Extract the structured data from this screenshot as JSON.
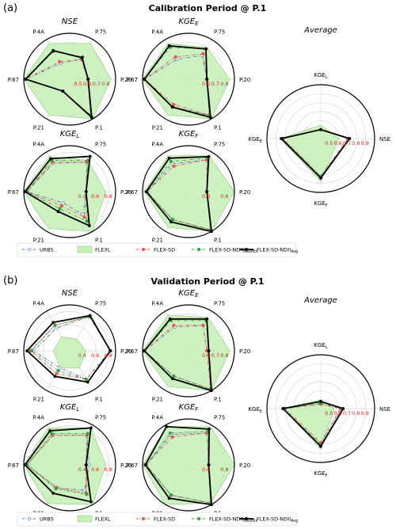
{
  "panels": [
    {
      "letter": "(a)",
      "title": "Calibration Period @ P.1"
    },
    {
      "letter": "(b)",
      "title": "Validation Period @ P.1"
    }
  ],
  "legend": [
    {
      "key": "urbs",
      "label": "URBS",
      "sub": "",
      "color": "#5a6fb8",
      "style": "dashdot-open"
    },
    {
      "key": "flexl",
      "label": "FLEXL",
      "sub": "",
      "color": "#c6efb6",
      "style": "fill"
    },
    {
      "key": "flexsd",
      "label": "FLEX-SD",
      "sub": "",
      "color": "#e05a50",
      "style": "dashdot-filled"
    },
    {
      "key": "ndmm",
      "label": "FLEX-SD-NDII",
      "sub": "MaxMin",
      "color": "#3d9a47",
      "style": "dashdot-filled"
    },
    {
      "key": "ndavg",
      "label": "FLEX-SD-NDII",
      "sub": "Avg",
      "color": "#000000",
      "style": "solid"
    }
  ],
  "colors": {
    "flexl_fill": "#c6efb6",
    "flexl_edge": "#8fcc7b",
    "tick_labels": "#e0251d",
    "ring": "#d8d8d8",
    "black": "#000000"
  },
  "chart_data": [
    {
      "type": "radar",
      "panel": "a",
      "title": "NSE",
      "title_sub": "",
      "axes": [
        "P.75",
        "P.20",
        "P.1",
        "P.21",
        "P.67",
        "P.4A"
      ],
      "rings": [
        0.5,
        0.6,
        0.7,
        0.8
      ],
      "ring_labels": [
        "0.5",
        "0.6",
        "0.7",
        "0.8"
      ],
      "range": [
        0.4,
        0.9
      ],
      "series": {
        "flexl": [
          0.85,
          0.85,
          0.9,
          0.85,
          0.9,
          0.85
        ],
        "urbs": [
          0.65,
          0.6,
          0.85,
          0.55,
          0.88,
          0.6
        ],
        "flexsd": [
          0.65,
          0.6,
          0.85,
          0.55,
          0.88,
          0.62
        ],
        "ndmm": [
          0.68,
          0.6,
          0.86,
          0.55,
          0.88,
          0.75
        ],
        "ndavg": [
          0.67,
          0.6,
          0.88,
          0.55,
          0.88,
          0.76
        ]
      }
    },
    {
      "type": "radar",
      "panel": "a",
      "title": "KGE",
      "title_sub": "E",
      "axes": [
        "P.75",
        "P.20",
        "P.1",
        "P.21",
        "P.67",
        "P.4A"
      ],
      "rings": [
        0.6,
        0.7,
        0.8
      ],
      "ring_labels": [
        "0.6",
        "0.7",
        "0.8"
      ],
      "range": [
        0.4,
        0.9
      ],
      "series": {
        "flexl": [
          0.8,
          0.85,
          0.9,
          0.85,
          0.9,
          0.85
        ],
        "urbs": [
          0.7,
          0.6,
          0.85,
          0.75,
          0.88,
          0.65
        ],
        "flexsd": [
          0.72,
          0.6,
          0.85,
          0.72,
          0.88,
          0.68
        ],
        "ndmm": [
          0.78,
          0.6,
          0.86,
          0.75,
          0.88,
          0.8
        ],
        "ndavg": [
          0.78,
          0.6,
          0.88,
          0.75,
          0.88,
          0.82
        ]
      }
    },
    {
      "type": "radar",
      "panel": "a",
      "title": "KGE",
      "title_sub": "L",
      "axes": [
        "P.75",
        "P.20",
        "P.1",
        "P.21",
        "P.67",
        "P.4A"
      ],
      "rings": [
        0.4,
        0.6,
        0.8
      ],
      "ring_labels": [
        "0.4",
        "0.6",
        "0.8"
      ],
      "range": [
        0.2,
        0.9
      ],
      "series": {
        "flexl": [
          0.75,
          0.75,
          0.9,
          0.85,
          0.9,
          0.82
        ],
        "urbs": [
          0.72,
          0.45,
          0.6,
          0.4,
          0.85,
          0.7
        ],
        "flexsd": [
          0.72,
          0.45,
          0.65,
          0.45,
          0.85,
          0.72
        ],
        "ndmm": [
          0.75,
          0.45,
          0.72,
          0.5,
          0.85,
          0.75
        ],
        "ndavg": [
          0.82,
          0.45,
          0.8,
          0.55,
          0.88,
          0.78
        ]
      }
    },
    {
      "type": "radar",
      "panel": "a",
      "title": "KGE",
      "title_sub": "F",
      "axes": [
        "P.75",
        "P.20",
        "P.1",
        "P.21",
        "P.67",
        "P.4A"
      ],
      "rings": [
        0.6,
        0.8
      ],
      "ring_labels": [
        "0.6",
        "0.8"
      ],
      "range": [
        0.4,
        0.9
      ],
      "series": {
        "flexl": [
          0.85,
          0.9,
          0.9,
          0.85,
          0.88,
          0.85
        ],
        "urbs": [
          0.8,
          0.6,
          0.88,
          0.75,
          0.85,
          0.75
        ],
        "flexsd": [
          0.8,
          0.6,
          0.88,
          0.75,
          0.85,
          0.72
        ],
        "ndmm": [
          0.82,
          0.6,
          0.88,
          0.75,
          0.85,
          0.78
        ],
        "ndavg": [
          0.84,
          0.6,
          0.9,
          0.78,
          0.86,
          0.82
        ]
      }
    },
    {
      "type": "radar",
      "panel": "a",
      "title": "Average",
      "title_sub": "",
      "axes": [
        "KGE_L",
        "NSE",
        "KGE_F",
        "KGE_E"
      ],
      "rings": [
        0.5,
        0.6,
        0.7,
        0.8,
        0.9
      ],
      "ring_labels": [
        "0.5",
        "0.6",
        "0.7",
        "0.8",
        "0.9"
      ],
      "range": [
        0.4,
        1.0
      ],
      "series": {
        "flexl": [
          0.55,
          0.6,
          0.88,
          0.85
        ],
        "urbs": [
          0.5,
          0.7,
          0.82,
          0.82
        ],
        "flexsd": [
          0.5,
          0.7,
          0.82,
          0.82
        ],
        "ndmm": [
          0.5,
          0.72,
          0.82,
          0.83
        ],
        "ndavg": [
          0.5,
          0.72,
          0.84,
          0.84
        ]
      }
    },
    {
      "type": "radar",
      "panel": "b",
      "title": "NSE",
      "title_sub": "",
      "axes": [
        "P.75",
        "P.20",
        "P.1",
        "P.21",
        "P.67",
        "P.4A"
      ],
      "rings": [
        0.4,
        0.6,
        0.8
      ],
      "ring_labels": [
        "0.4",
        "0.6",
        "0.8"
      ],
      "range": [
        0.2,
        0.9
      ],
      "series": {
        "flexl": [
          0.4,
          0.45,
          0.5,
          0.5,
          0.45,
          0.45
        ],
        "urbs": [
          0.8,
          0.82,
          0.7,
          0.5,
          0.75,
          0.6
        ],
        "flexsd": [
          0.8,
          0.82,
          0.7,
          0.6,
          0.8,
          0.65
        ],
        "ndmm": [
          0.8,
          0.82,
          0.7,
          0.55,
          0.78,
          0.65
        ],
        "ndavg": [
          0.82,
          0.82,
          0.75,
          0.65,
          0.85,
          0.7
        ]
      }
    },
    {
      "type": "radar",
      "panel": "b",
      "title": "KGE",
      "title_sub": "E",
      "axes": [
        "P.75",
        "P.20",
        "P.1",
        "P.21",
        "P.67",
        "P.4A"
      ],
      "rings": [
        0.6,
        0.7,
        0.8
      ],
      "ring_labels": [
        "0.6",
        "0.7",
        "0.8"
      ],
      "range": [
        0.4,
        0.9
      ],
      "series": {
        "flexl": [
          0.82,
          0.85,
          0.9,
          0.85,
          0.9,
          0.85
        ],
        "urbs": [
          0.72,
          0.6,
          0.88,
          0.72,
          0.88,
          0.7
        ],
        "flexsd": [
          0.72,
          0.6,
          0.88,
          0.72,
          0.88,
          0.72
        ],
        "ndmm": [
          0.78,
          0.62,
          0.88,
          0.72,
          0.88,
          0.78
        ],
        "ndavg": [
          0.8,
          0.62,
          0.9,
          0.75,
          0.88,
          0.8
        ]
      }
    },
    {
      "type": "radar",
      "panel": "b",
      "title": "KGE",
      "title_sub": "L",
      "axes": [
        "P.75",
        "P.20",
        "P.1",
        "P.21",
        "P.67",
        "P.4A"
      ],
      "rings": [
        0.4,
        0.6,
        0.8
      ],
      "ring_labels": [
        "0.4",
        "0.6",
        "0.8"
      ],
      "range": [
        0.2,
        0.9
      ],
      "series": {
        "flexl": [
          0.85,
          0.75,
          0.9,
          0.88,
          0.9,
          0.85
        ],
        "urbs": [
          0.72,
          0.5,
          0.65,
          0.6,
          0.85,
          0.72
        ],
        "flexsd": [
          0.72,
          0.45,
          0.7,
          0.6,
          0.85,
          0.72
        ],
        "ndmm": [
          0.75,
          0.45,
          0.72,
          0.62,
          0.85,
          0.75
        ],
        "ndavg": [
          0.85,
          0.45,
          0.85,
          0.7,
          0.88,
          0.8
        ]
      }
    },
    {
      "type": "radar",
      "panel": "b",
      "title": "KGE",
      "title_sub": "F",
      "axes": [
        "P.75",
        "P.20",
        "P.1",
        "P.21",
        "P.67",
        "P.4A"
      ],
      "rings": [
        0.6,
        0.8
      ],
      "ring_labels": [
        "0.6",
        "0.8"
      ],
      "range": [
        0.4,
        0.9
      ],
      "series": {
        "flexl": [
          0.88,
          0.9,
          0.88,
          0.9,
          0.9,
          0.88
        ],
        "urbs": [
          0.8,
          0.62,
          0.88,
          0.78,
          0.86,
          0.78
        ],
        "flexsd": [
          0.8,
          0.62,
          0.88,
          0.78,
          0.86,
          0.75
        ],
        "ndmm": [
          0.82,
          0.62,
          0.88,
          0.78,
          0.86,
          0.8
        ],
        "ndavg": [
          0.85,
          0.62,
          0.9,
          0.82,
          0.87,
          0.88
        ]
      }
    },
    {
      "type": "radar",
      "panel": "b",
      "title": "Average",
      "title_sub": "",
      "axes": [
        "KGE_L",
        "NSE",
        "KGE_F",
        "KGE_E"
      ],
      "rings": [
        0.5,
        0.6,
        0.7,
        0.8,
        0.9
      ],
      "ring_labels": [
        "0.5",
        "0.6",
        "0.7",
        "0.8",
        "0.9"
      ],
      "range": [
        0.4,
        1.0
      ],
      "series": {
        "flexl": [
          0.5,
          0.55,
          0.85,
          0.82
        ],
        "urbs": [
          0.45,
          0.62,
          0.78,
          0.8
        ],
        "flexsd": [
          0.45,
          0.62,
          0.78,
          0.8
        ],
        "ndmm": [
          0.46,
          0.64,
          0.8,
          0.82
        ],
        "ndavg": [
          0.48,
          0.65,
          0.82,
          0.82
        ]
      }
    }
  ]
}
